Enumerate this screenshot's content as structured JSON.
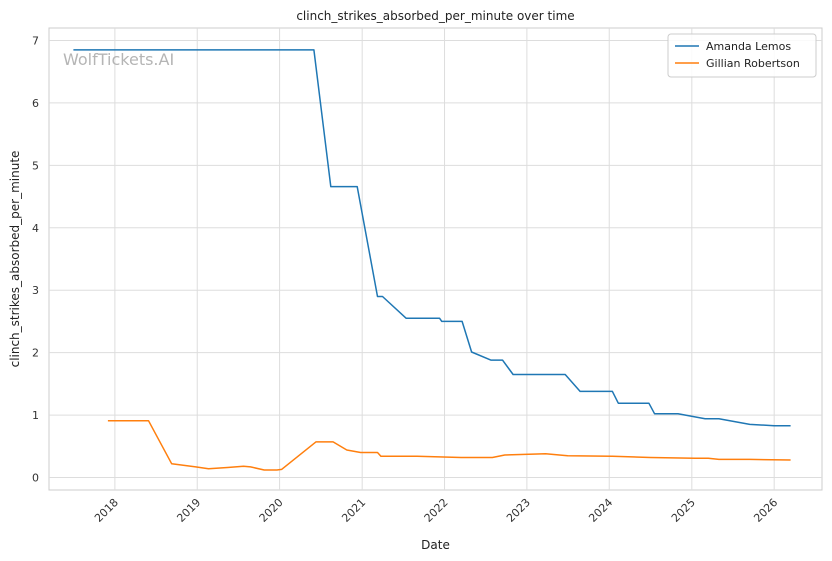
{
  "chart_data": {
    "type": "line",
    "title": "clinch_strikes_absorbed_per_minute over time",
    "xlabel": "Date",
    "ylabel": "clinch_strikes_absorbed_per_minute",
    "watermark": "WolfTickets.AI",
    "xlim": [
      "2017-03-15",
      "2026-08-01"
    ],
    "ylim": [
      -0.2,
      7.2
    ],
    "x_ticks": [
      "2018-01-01",
      "2019-01-01",
      "2020-01-01",
      "2021-01-01",
      "2022-01-01",
      "2023-01-01",
      "2024-01-01",
      "2025-01-01",
      "2026-01-01"
    ],
    "x_tick_labels": [
      "2018",
      "2019",
      "2020",
      "2021",
      "2022",
      "2023",
      "2024",
      "2025",
      "2026"
    ],
    "y_ticks": [
      0,
      1,
      2,
      3,
      4,
      5,
      6,
      7
    ],
    "y_tick_labels": [
      "0",
      "1",
      "2",
      "3",
      "4",
      "5",
      "6",
      "7"
    ],
    "grid": true,
    "legend_position": "top-right",
    "series": [
      {
        "name": "Amanda Lemos",
        "color": "#1f77b4",
        "points": [
          [
            "2017-07-01",
            6.85
          ],
          [
            "2020-06-01",
            6.85
          ],
          [
            "2020-08-15",
            4.66
          ],
          [
            "2020-11-15",
            4.66
          ],
          [
            "2020-12-10",
            4.66
          ],
          [
            "2021-03-10",
            2.9
          ],
          [
            "2021-04-01",
            2.9
          ],
          [
            "2021-07-15",
            2.55
          ],
          [
            "2021-12-10",
            2.55
          ],
          [
            "2021-12-20",
            2.5
          ],
          [
            "2022-03-20",
            2.5
          ],
          [
            "2022-05-01",
            2.01
          ],
          [
            "2022-07-25",
            1.88
          ],
          [
            "2022-09-15",
            1.88
          ],
          [
            "2022-11-01",
            1.65
          ],
          [
            "2023-06-20",
            1.65
          ],
          [
            "2023-08-25",
            1.38
          ],
          [
            "2024-01-15",
            1.38
          ],
          [
            "2024-02-10",
            1.19
          ],
          [
            "2024-06-25",
            1.19
          ],
          [
            "2024-07-20",
            1.02
          ],
          [
            "2024-11-01",
            1.02
          ],
          [
            "2025-03-01",
            0.94
          ],
          [
            "2025-05-01",
            0.94
          ],
          [
            "2025-09-15",
            0.85
          ],
          [
            "2026-01-01",
            0.83
          ],
          [
            "2026-03-15",
            0.83
          ]
        ]
      },
      {
        "name": "Gillian Robertson",
        "color": "#ff7f0e",
        "points": [
          [
            "2017-12-01",
            0.91
          ],
          [
            "2018-05-30",
            0.91
          ],
          [
            "2018-09-10",
            0.22
          ],
          [
            "2018-12-25",
            0.17
          ],
          [
            "2019-02-20",
            0.14
          ],
          [
            "2019-05-15",
            0.16
          ],
          [
            "2019-07-25",
            0.18
          ],
          [
            "2019-08-25",
            0.17
          ],
          [
            "2019-10-25",
            0.12
          ],
          [
            "2019-12-20",
            0.12
          ],
          [
            "2020-01-10",
            0.13
          ],
          [
            "2020-06-10",
            0.57
          ],
          [
            "2020-08-25",
            0.57
          ],
          [
            "2020-10-25",
            0.44
          ],
          [
            "2020-12-25",
            0.4
          ],
          [
            "2021-03-10",
            0.4
          ],
          [
            "2021-03-25",
            0.34
          ],
          [
            "2021-09-01",
            0.34
          ],
          [
            "2022-03-15",
            0.32
          ],
          [
            "2022-08-01",
            0.32
          ],
          [
            "2022-09-25",
            0.36
          ],
          [
            "2023-03-25",
            0.38
          ],
          [
            "2023-07-01",
            0.35
          ],
          [
            "2024-01-15",
            0.34
          ],
          [
            "2024-07-01",
            0.32
          ],
          [
            "2025-01-15",
            0.31
          ],
          [
            "2025-03-15",
            0.31
          ],
          [
            "2025-05-01",
            0.29
          ],
          [
            "2025-09-15",
            0.29
          ],
          [
            "2026-03-15",
            0.28
          ]
        ]
      }
    ]
  }
}
